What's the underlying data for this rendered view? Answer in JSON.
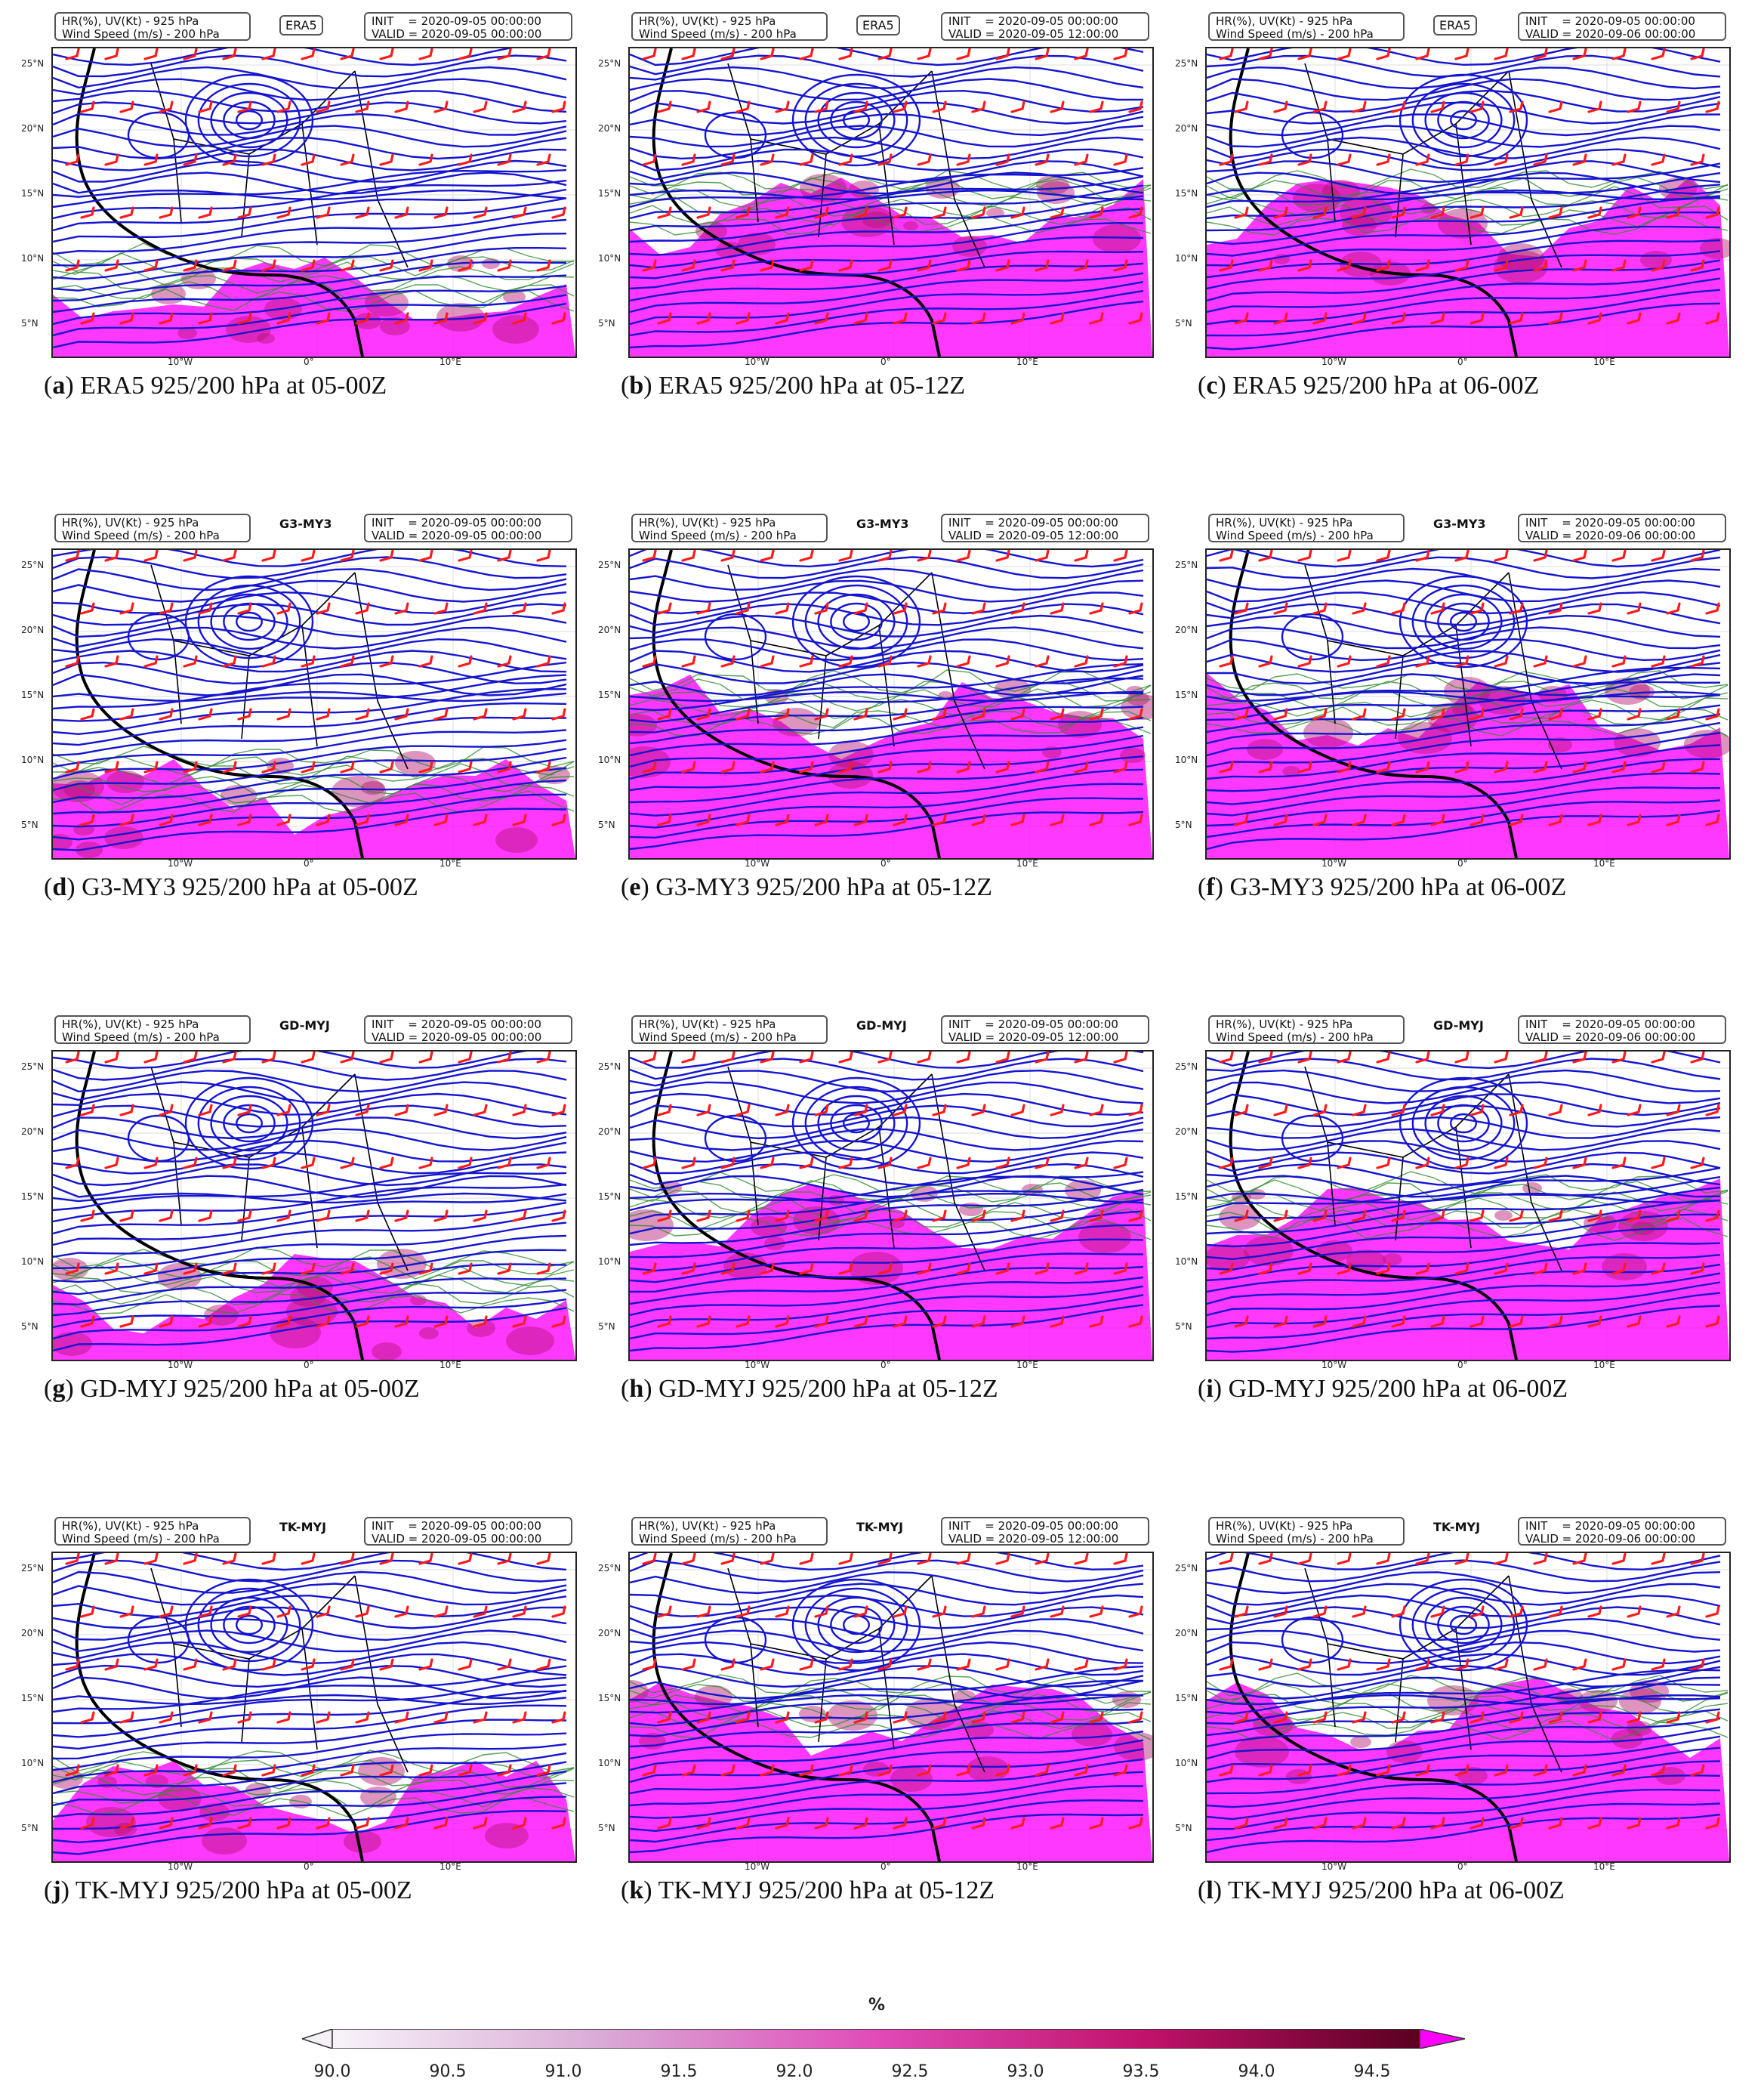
{
  "panels": [
    {
      "letter": "a",
      "caption": "ERA5 925/200 hPa at 05-00Z",
      "model": "ERA5",
      "model_boxed": true,
      "box_left": "HR(%), UV(Kt) - 925 hPa\nWind Speed (m/s) - 200 hPa",
      "box_right": "INIT    = 2020-09-05 00:00:00\nVALID = 2020-09-05 00:00:00"
    },
    {
      "letter": "b",
      "caption": "ERA5 925/200 hPa at 05-12Z",
      "model": "ERA5",
      "model_boxed": true,
      "box_left": "HR(%), UV(Kt) - 925 hPa\nWind Speed (m/s) - 200 hPa",
      "box_right": "INIT    = 2020-09-05 00:00:00\nVALID = 2020-09-05 12:00:00"
    },
    {
      "letter": "c",
      "caption": "ERA5 925/200 hPa at 06-00Z",
      "model": "ERA5",
      "model_boxed": true,
      "box_left": "HR(%), UV(Kt) - 925 hPa\nWind Speed (m/s) - 200 hPa",
      "box_right": "INIT    = 2020-09-05 00:00:00\nVALID = 2020-09-06 00:00:00"
    },
    {
      "letter": "d",
      "caption": "G3-MY3 925/200 hPa at 05-00Z",
      "model": "G3-MY3",
      "model_boxed": false,
      "box_left": "HR(%), UV(Kt) - 925 hPa\nWind Speed (m/s) - 200 hPa",
      "box_right": "INIT    = 2020-09-05 00:00:00\nVALID = 2020-09-05 00:00:00"
    },
    {
      "letter": "e",
      "caption": "G3-MY3 925/200 hPa at 05-12Z",
      "model": "G3-MY3",
      "model_boxed": false,
      "box_left": "HR(%), UV(Kt) - 925 hPa\nWind Speed (m/s) - 200 hPa",
      "box_right": "INIT    = 2020-09-05 00:00:00\nVALID = 2020-09-05 12:00:00"
    },
    {
      "letter": "f",
      "caption": "G3-MY3 925/200 hPa at 06-00Z",
      "model": "G3-MY3",
      "model_boxed": false,
      "box_left": "HR(%), UV(Kt) - 925 hPa\nWind Speed (m/s) - 200 hPa",
      "box_right": "INIT    = 2020-09-05 00:00:00\nVALID = 2020-09-06 00:00:00"
    },
    {
      "letter": "g",
      "caption": "GD-MYJ 925/200 hPa at 05-00Z",
      "model": "GD-MYJ",
      "model_boxed": false,
      "box_left": "HR(%), UV(Kt) - 925 hPa\nWind Speed (m/s) - 200 hPa",
      "box_right": "INIT    = 2020-09-05 00:00:00\nVALID = 2020-09-05 00:00:00"
    },
    {
      "letter": "h",
      "caption": "GD-MYJ 925/200 hPa at 05-12Z",
      "model": "GD-MYJ",
      "model_boxed": false,
      "box_left": "HR(%), UV(Kt) - 925 hPa\nWind Speed (m/s) - 200 hPa",
      "box_right": "INIT    = 2020-09-05 00:00:00\nVALID = 2020-09-05 12:00:00"
    },
    {
      "letter": "i",
      "caption": "GD-MYJ 925/200 hPa at 06-00Z",
      "model": "GD-MYJ",
      "model_boxed": false,
      "box_left": "HR(%), UV(Kt) - 925 hPa\nWind Speed (m/s) - 200 hPa",
      "box_right": "INIT    = 2020-09-05 00:00:00\nVALID = 2020-09-06 00:00:00"
    },
    {
      "letter": "j",
      "caption": "TK-MYJ 925/200 hPa at 05-00Z",
      "model": "TK-MYJ",
      "model_boxed": false,
      "box_left": "HR(%), UV(Kt) - 925 hPa\nWind Speed (m/s) - 200 hPa",
      "box_right": "INIT    = 2020-09-05 00:00:00\nVALID = 2020-09-05 00:00:00"
    },
    {
      "letter": "k",
      "caption": "TK-MYJ 925/200 hPa at 05-12Z",
      "model": "TK-MYJ",
      "model_boxed": false,
      "box_left": "HR(%), UV(Kt) - 925 hPa\nWind Speed (m/s) - 200 hPa",
      "box_right": "INIT    = 2020-09-05 00:00:00\nVALID = 2020-09-05 12:00:00"
    },
    {
      "letter": "l",
      "caption": "TK-MYJ 925/200 hPa at 06-00Z",
      "model": "TK-MYJ",
      "model_boxed": false,
      "box_left": "HR(%), UV(Kt) - 925 hPa\nWind Speed (m/s) - 200 hPa",
      "box_right": "INIT    = 2020-09-05 00:00:00\nVALID = 2020-09-06 00:00:00"
    }
  ],
  "lat_labels": [
    "25°N",
    "20°N",
    "15°N",
    "10°N",
    "5°N"
  ],
  "lon_labels": [
    "10°W",
    "0°",
    "10°E"
  ],
  "colorbar": {
    "unit": "%",
    "ticks": [
      "90.0",
      "90.5",
      "91.0",
      "91.5",
      "92.0",
      "92.5",
      "93.0",
      "93.5",
      "94.0",
      "94.5"
    ],
    "colors": {
      "low": "#f4eff6",
      "mid": "#e040c0",
      "high": "#6a0030",
      "over": "#ff00ff"
    }
  },
  "colors": {
    "streamline": "#1515d0",
    "barb": "#ff1a1a",
    "contour": "#2e8b2e",
    "humid": "#ff00ff",
    "coast": "#000000"
  }
}
